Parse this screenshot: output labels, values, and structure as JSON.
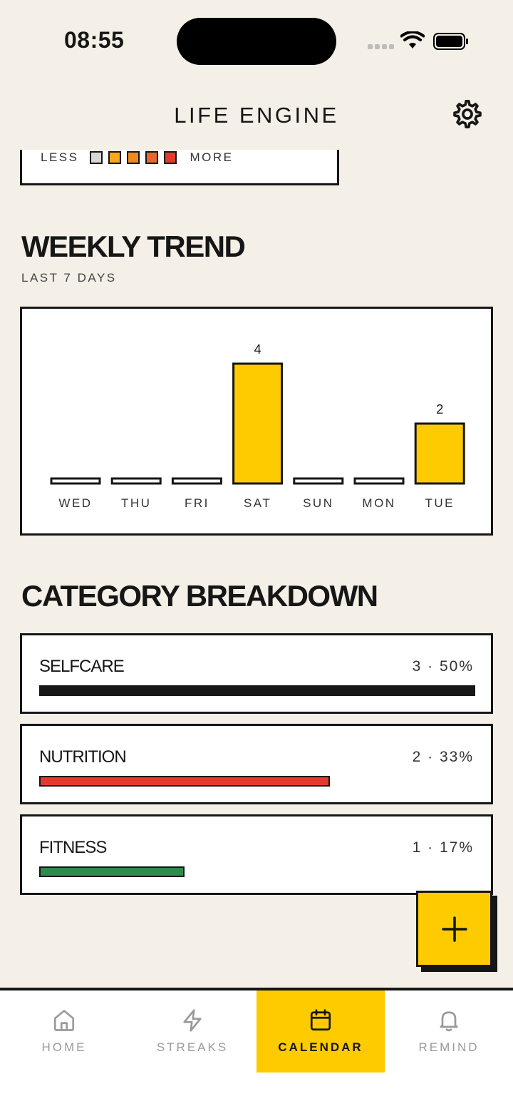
{
  "status_bar": {
    "time": "08:55"
  },
  "header": {
    "title": "LIFE ENGINE"
  },
  "heatmap_legend": {
    "less_label": "LESS",
    "more_label": "MORE",
    "colors": [
      "#d6d6d6",
      "#f7a81b",
      "#f08a1e",
      "#e8672a",
      "#e23b2e"
    ]
  },
  "weekly_trend": {
    "title": "WEEKLY TREND",
    "subtitle": "LAST 7 DAYS"
  },
  "chart_data": {
    "type": "bar",
    "categories": [
      "WED",
      "THU",
      "FRI",
      "SAT",
      "SUN",
      "MON",
      "TUE"
    ],
    "values": [
      0,
      0,
      0,
      4,
      0,
      0,
      2
    ],
    "data_labels": [
      "",
      "",
      "",
      "4",
      "",
      "",
      "2"
    ],
    "bar_color": "#fecb00",
    "ylim": [
      0,
      4
    ],
    "grid": false,
    "legend": "none"
  },
  "category_breakdown": {
    "title": "CATEGORY BREAKDOWN",
    "items": [
      {
        "name": "SELFCARE",
        "stat": "3 · 50%",
        "fraction": 1.0,
        "color": "#161616"
      },
      {
        "name": "NUTRITION",
        "stat": "2 · 33%",
        "fraction": 0.667,
        "color": "#e23b2e"
      },
      {
        "name": "FITNESS",
        "stat": "1 · 17%",
        "fraction": 0.333,
        "color": "#2e8b4e"
      }
    ]
  },
  "fab": {
    "icon": "plus-icon"
  },
  "tabbar": {
    "tabs": [
      {
        "label": "HOME",
        "icon": "home-icon"
      },
      {
        "label": "STREAKS",
        "icon": "lightning-icon"
      },
      {
        "label": "CALENDAR",
        "icon": "calendar-icon",
        "active": true
      },
      {
        "label": "REMIND",
        "icon": "bell-icon"
      }
    ]
  },
  "colors": {
    "background": "#f4efe7",
    "accent": "#fecb00",
    "ink": "#161616"
  }
}
